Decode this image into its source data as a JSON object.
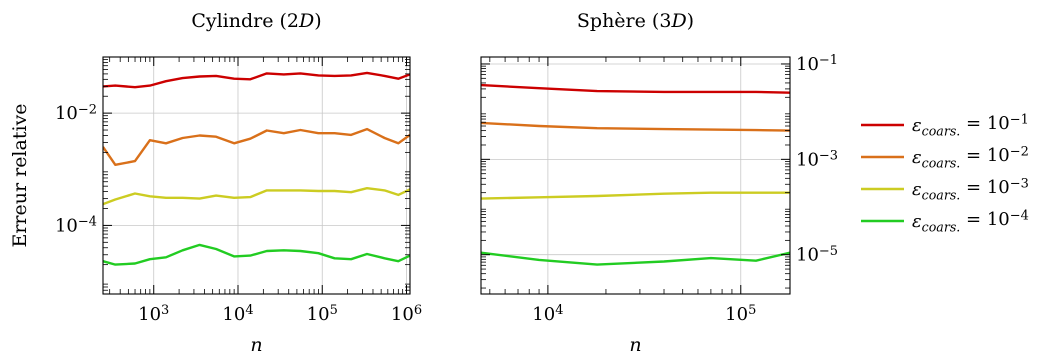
{
  "chart_data": [
    {
      "type": "line",
      "title": "Cylindre (2D)",
      "xlabel": "n",
      "ylabel": "Erreur relative",
      "xscale": "log",
      "yscale": "log",
      "xlim": [
        250,
        1100000
      ],
      "ylim": [
        6e-06,
        0.1
      ],
      "xticks": [
        {
          "value": 1000,
          "label": "10^3"
        },
        {
          "value": 10000,
          "label": "10^4"
        },
        {
          "value": 100000,
          "label": "10^5"
        },
        {
          "value": 1000000,
          "label": "10^6"
        }
      ],
      "yticks": [
        {
          "value": 0.01,
          "label": "10^-2"
        },
        {
          "value": 0.0001,
          "label": "10^-4"
        }
      ],
      "grid": true,
      "series": [
        {
          "name": "ε_coars. = 10^-1",
          "color": "#cc0000",
          "x": [
            250,
            350,
            600,
            900,
            1400,
            2200,
            3500,
            5500,
            9000,
            14000,
            22000,
            35000,
            55000,
            90000,
            140000,
            220000,
            340000,
            550000,
            800000,
            1100000
          ],
          "y": [
            0.03,
            0.031,
            0.029,
            0.031,
            0.037,
            0.042,
            0.045,
            0.046,
            0.041,
            0.04,
            0.051,
            0.049,
            0.051,
            0.047,
            0.046,
            0.047,
            0.052,
            0.046,
            0.041,
            0.049
          ]
        },
        {
          "name": "ε_coars. = 10^-2",
          "color": "#d9701a",
          "x": [
            250,
            350,
            600,
            900,
            1400,
            2200,
            3500,
            5500,
            9000,
            14000,
            22000,
            35000,
            55000,
            90000,
            140000,
            220000,
            340000,
            550000,
            800000,
            1100000
          ],
          "y": [
            0.0025,
            0.0012,
            0.0014,
            0.0033,
            0.0029,
            0.0036,
            0.004,
            0.0038,
            0.0029,
            0.0035,
            0.0049,
            0.0044,
            0.005,
            0.0044,
            0.0044,
            0.0041,
            0.0052,
            0.0036,
            0.0029,
            0.0041
          ]
        },
        {
          "name": "ε_coars. = 10^-3",
          "color": "#cccc22",
          "x": [
            250,
            350,
            600,
            900,
            1400,
            2200,
            3500,
            5500,
            9000,
            14000,
            22000,
            35000,
            55000,
            90000,
            140000,
            220000,
            340000,
            550000,
            800000,
            1100000
          ],
          "y": [
            0.00024,
            0.00029,
            0.00037,
            0.00033,
            0.00031,
            0.00031,
            0.0003,
            0.00034,
            0.00031,
            0.00032,
            0.00042,
            0.00042,
            0.00042,
            0.00041,
            0.00041,
            0.00039,
            0.00046,
            0.00042,
            0.00035,
            0.00044
          ]
        },
        {
          "name": "ε_coars. = 10^-4",
          "color": "#22cc22",
          "x": [
            250,
            350,
            600,
            900,
            1400,
            2200,
            3500,
            5500,
            9000,
            14000,
            22000,
            35000,
            55000,
            90000,
            140000,
            220000,
            340000,
            550000,
            800000,
            1100000
          ],
          "y": [
            2.3e-05,
            2e-05,
            2.1e-05,
            2.5e-05,
            2.7e-05,
            3.6e-05,
            4.5e-05,
            3.8e-05,
            2.8e-05,
            2.9e-05,
            3.5e-05,
            3.6e-05,
            3.5e-05,
            3.2e-05,
            2.6e-05,
            2.5e-05,
            3.1e-05,
            2.6e-05,
            2.3e-05,
            2.9e-05
          ]
        }
      ]
    },
    {
      "type": "line",
      "title": "Sphère (3D)",
      "xlabel": "n",
      "ylabel": "",
      "xscale": "log",
      "yscale": "log",
      "xlim": [
        4500,
        180000
      ],
      "ylim": [
        1.5e-06,
        0.14
      ],
      "xticks": [
        {
          "value": 10000,
          "label": "10^4"
        },
        {
          "value": 100000,
          "label": "10^5"
        }
      ],
      "yticks": [
        {
          "value": 0.1,
          "label": "10^-1"
        },
        {
          "value": 0.001,
          "label": "10^-3"
        },
        {
          "value": 1e-05,
          "label": "10^-5"
        }
      ],
      "grid": true,
      "series": [
        {
          "name": "ε_coars. = 10^-1",
          "color": "#cc0000",
          "x": [
            4500,
            9000,
            18000,
            40000,
            70000,
            120000,
            180000
          ],
          "y": [
            0.036,
            0.031,
            0.027,
            0.026,
            0.026,
            0.026,
            0.025
          ]
        },
        {
          "name": "ε_coars. = 10^-2",
          "color": "#d9701a",
          "x": [
            4500,
            9000,
            18000,
            40000,
            70000,
            120000,
            180000
          ],
          "y": [
            0.0058,
            0.005,
            0.0045,
            0.0043,
            0.0042,
            0.0041,
            0.004
          ]
        },
        {
          "name": "ε_coars. = 10^-3",
          "color": "#cccc22",
          "x": [
            4500,
            9000,
            18000,
            40000,
            70000,
            120000,
            180000
          ],
          "y": [
            0.00015,
            0.00016,
            0.00017,
            0.00019,
            0.0002,
            0.0002,
            0.0002
          ]
        },
        {
          "name": "ε_coars. = 10^-4",
          "color": "#22cc22",
          "x": [
            4500,
            9000,
            18000,
            40000,
            70000,
            120000,
            180000
          ],
          "y": [
            1.1e-05,
            7.8e-06,
            6.2e-06,
            7.2e-06,
            8.5e-06,
            7.5e-06,
            1.1e-05
          ]
        }
      ]
    }
  ],
  "legend": {
    "placement": "right",
    "entries": [
      {
        "color": "#cc0000",
        "label": "ε_coars. = 10^-1"
      },
      {
        "color": "#d9701a",
        "label": "ε_coars. = 10^-2"
      },
      {
        "color": "#cccc22",
        "label": "ε_coars. = 10^-3"
      },
      {
        "color": "#22cc22",
        "label": "ε_coars. = 10^-4"
      }
    ]
  }
}
